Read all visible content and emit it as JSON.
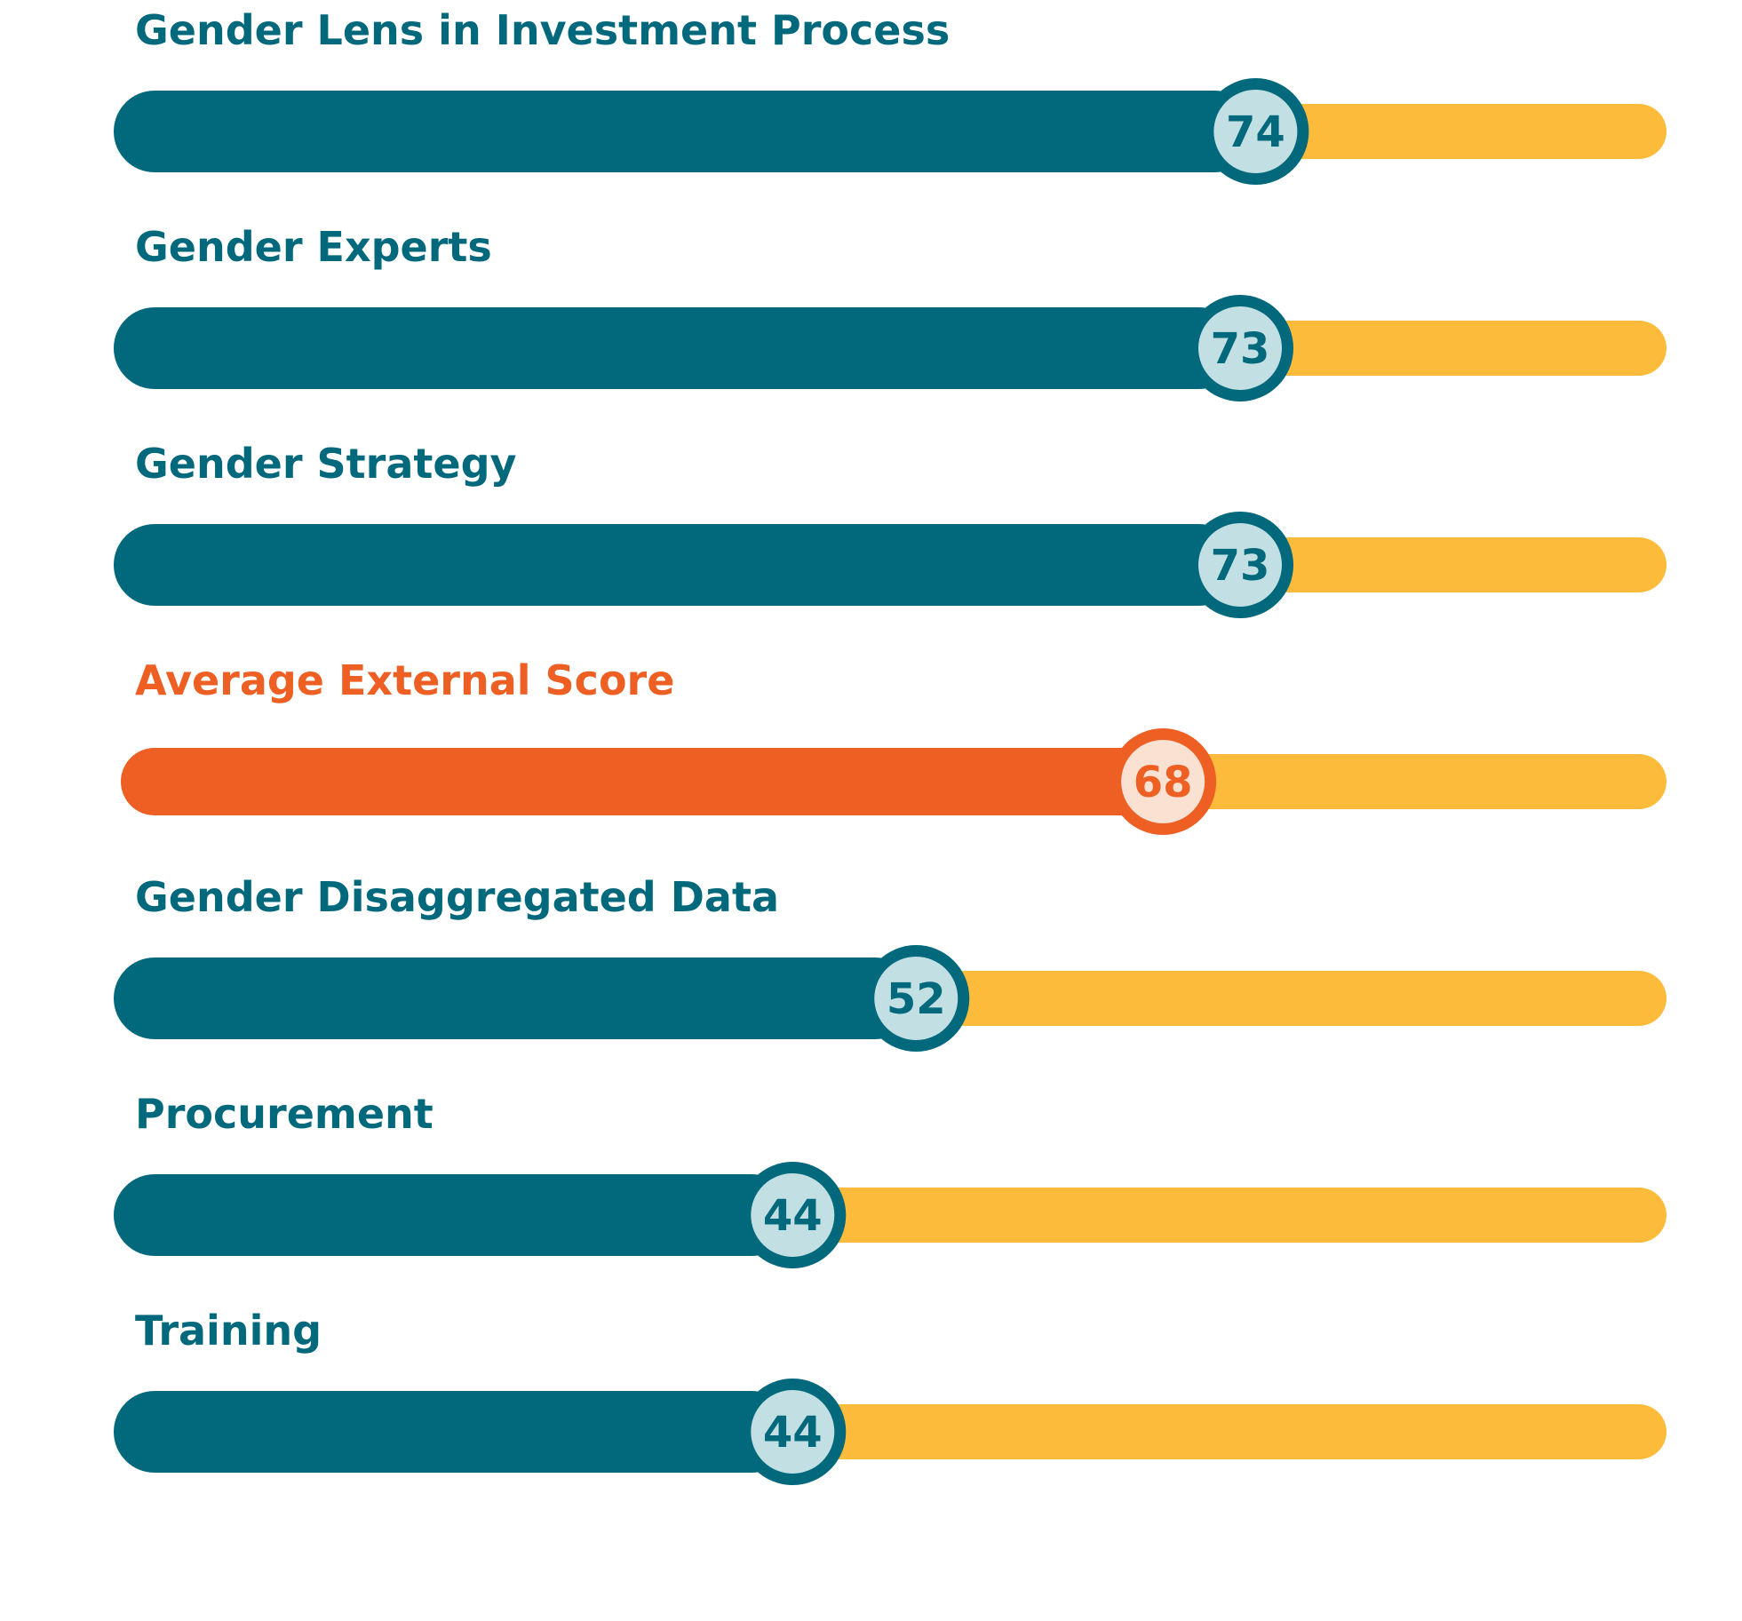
{
  "chart_data": {
    "type": "bar",
    "orientation": "horizontal",
    "categories": [
      "Gender Lens in Investment Process",
      "Gender Experts",
      "Gender Strategy",
      "Average External Score",
      "Gender Disaggregated Data",
      "Procurement",
      "Training"
    ],
    "values": [
      74,
      73,
      73,
      68,
      52,
      44,
      44
    ],
    "highlight": "Average External Score",
    "xlim": [
      0,
      100
    ],
    "grid": false,
    "legend": "none"
  },
  "colors": {
    "bar": "#02687C",
    "bar_highlight": "#EE5F24",
    "track": "#FDBB3C",
    "bubble_fill": "#C2E0E4",
    "bubble_fill_highlight": "#FBE1D2",
    "label": "#02687C",
    "label_highlight": "#EE5F24"
  }
}
